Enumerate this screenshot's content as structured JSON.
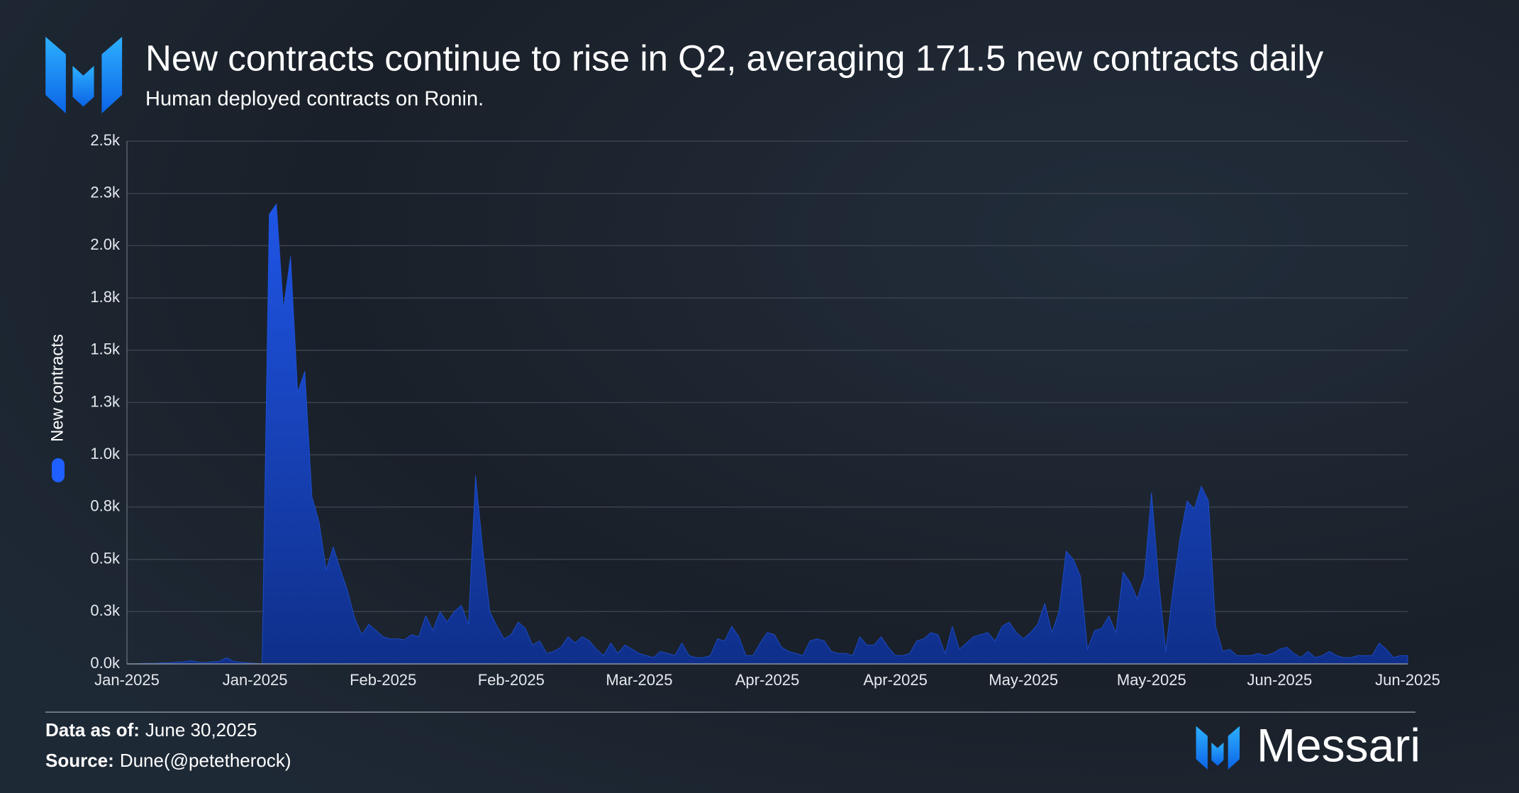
{
  "chart_data": {
    "type": "area",
    "title": "New contracts continue to rise in Q2, averaging 171.5 new contracts daily",
    "subtitle": "Human deployed contracts on Ronin.",
    "categories": [
      "Jan-2025",
      null,
      null,
      null,
      null,
      null,
      null,
      null,
      null,
      null,
      null,
      null,
      null,
      null,
      null,
      null,
      null,
      null,
      "Jan-2025",
      null,
      null,
      null,
      null,
      null,
      null,
      null,
      null,
      null,
      null,
      null,
      null,
      null,
      null,
      null,
      null,
      null,
      "Feb-2025",
      null,
      null,
      null,
      null,
      null,
      null,
      null,
      null,
      null,
      null,
      null,
      null,
      null,
      null,
      null,
      null,
      null,
      "Feb-2025",
      null,
      null,
      null,
      null,
      null,
      null,
      null,
      null,
      null,
      null,
      null,
      null,
      null,
      null,
      null,
      null,
      null,
      "Mar-2025",
      null,
      null,
      null,
      null,
      null,
      null,
      null,
      null,
      null,
      null,
      null,
      null,
      null,
      null,
      null,
      null,
      null,
      "Apr-2025",
      null,
      null,
      null,
      null,
      null,
      null,
      null,
      null,
      null,
      null,
      null,
      null,
      null,
      null,
      null,
      null,
      null,
      "Apr-2025",
      null,
      null,
      null,
      null,
      null,
      null,
      null,
      null,
      null,
      null,
      null,
      null,
      null,
      null,
      null,
      null,
      null,
      "May-2025",
      null,
      null,
      null,
      null,
      null,
      null,
      null,
      null,
      null,
      null,
      null,
      null,
      null,
      null,
      null,
      null,
      null,
      "May-2025",
      null,
      null,
      null,
      null,
      null,
      null,
      null,
      null,
      null,
      null,
      null,
      null,
      null,
      null,
      null,
      null,
      null,
      "Jun-2025",
      null,
      null,
      null,
      null,
      null,
      null,
      null,
      null,
      null,
      null,
      null,
      null,
      null,
      null,
      null,
      null,
      null,
      "Jun-2025"
    ],
    "series": [
      {
        "name": "New contracts",
        "color": "#1f5fff",
        "values": [
          0,
          0,
          2,
          3,
          3,
          5,
          6,
          8,
          10,
          15,
          8,
          6,
          10,
          12,
          30,
          12,
          8,
          5,
          3,
          0,
          2150,
          2200,
          1700,
          1950,
          1300,
          1400,
          800,
          680,
          450,
          560,
          450,
          350,
          220,
          140,
          190,
          160,
          130,
          120,
          120,
          115,
          140,
          130,
          230,
          160,
          250,
          200,
          250,
          280,
          190,
          900,
          550,
          250,
          180,
          120,
          140,
          200,
          170,
          90,
          110,
          50,
          60,
          80,
          130,
          100,
          130,
          110,
          70,
          40,
          100,
          50,
          90,
          70,
          50,
          40,
          30,
          60,
          50,
          40,
          100,
          40,
          30,
          30,
          40,
          120,
          110,
          180,
          130,
          40,
          40,
          100,
          150,
          140,
          80,
          60,
          50,
          40,
          110,
          120,
          110,
          60,
          50,
          50,
          40,
          130,
          90,
          90,
          130,
          80,
          40,
          40,
          50,
          110,
          120,
          150,
          140,
          50,
          180,
          70,
          100,
          130,
          140,
          150,
          110,
          180,
          200,
          150,
          120,
          150,
          190,
          290,
          150,
          250,
          540,
          500,
          420,
          70,
          160,
          170,
          230,
          150,
          440,
          390,
          310,
          420,
          820,
          400,
          60,
          350,
          600,
          780,
          740,
          850,
          780,
          180,
          60,
          70,
          40,
          40,
          40,
          50,
          40,
          50,
          70,
          80,
          50,
          30,
          60,
          30,
          40,
          60,
          40,
          30,
          30,
          40,
          40,
          40,
          100,
          70,
          30,
          40,
          40
        ]
      }
    ],
    "ylim": [
      0,
      2500
    ],
    "yticks": [
      {
        "value": 0,
        "label": "0.0k"
      },
      {
        "value": 250,
        "label": "0.3k"
      },
      {
        "value": 500,
        "label": "0.5k"
      },
      {
        "value": 750,
        "label": "0.8k"
      },
      {
        "value": 1000,
        "label": "1.0k"
      },
      {
        "value": 1250,
        "label": "1.3k"
      },
      {
        "value": 1500,
        "label": "1.5k"
      },
      {
        "value": 1750,
        "label": "1.8k"
      },
      {
        "value": 2000,
        "label": "2.0k"
      },
      {
        "value": 2250,
        "label": "2.3k"
      },
      {
        "value": 2500,
        "label": "2.5k"
      }
    ],
    "grid": true
  },
  "footer": {
    "data_as_of_label": "Data as of:",
    "data_as_of": "June 30,2025",
    "source_label": "Source:",
    "source": "Dune(@petetherock)"
  },
  "brand": "Messari"
}
